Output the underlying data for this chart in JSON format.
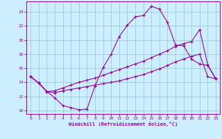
{
  "xlabel": "Windchill (Refroidissement éolien,°C)",
  "background_color": "#cceeff",
  "line_color": "#990099",
  "grid_color": "#99cccc",
  "xlim": [
    -0.5,
    23.5
  ],
  "ylim": [
    9.5,
    25.5
  ],
  "yticks": [
    10,
    12,
    14,
    16,
    18,
    20,
    22,
    24
  ],
  "xticks": [
    0,
    1,
    2,
    3,
    4,
    5,
    6,
    7,
    8,
    9,
    10,
    11,
    12,
    13,
    14,
    15,
    16,
    17,
    18,
    19,
    20,
    21,
    22,
    23
  ],
  "series1_x": [
    0,
    1,
    2,
    3,
    4,
    5,
    6,
    7,
    8,
    9,
    10,
    11,
    12,
    13,
    14,
    15,
    16,
    17,
    18,
    19,
    20,
    21,
    22,
    23
  ],
  "series1_y": [
    14.8,
    13.9,
    12.7,
    11.8,
    10.7,
    10.4,
    10.1,
    10.2,
    13.5,
    16.1,
    18.0,
    20.5,
    22.1,
    23.3,
    23.5,
    24.8,
    24.4,
    22.5,
    19.3,
    19.2,
    17.3,
    16.6,
    16.4,
    14.5
  ],
  "series2_x": [
    0,
    1,
    2,
    3,
    4,
    5,
    6,
    7,
    8,
    9,
    10,
    11,
    12,
    13,
    14,
    15,
    16,
    17,
    18,
    19,
    20,
    21,
    22,
    23
  ],
  "series2_y": [
    14.8,
    13.9,
    12.7,
    12.8,
    13.2,
    13.6,
    14.0,
    14.3,
    14.6,
    15.0,
    15.4,
    15.8,
    16.2,
    16.6,
    17.0,
    17.5,
    18.0,
    18.5,
    19.1,
    19.5,
    19.8,
    21.5,
    16.5,
    14.5
  ],
  "series3_x": [
    0,
    1,
    2,
    3,
    4,
    5,
    6,
    7,
    8,
    9,
    10,
    11,
    12,
    13,
    14,
    15,
    16,
    17,
    18,
    19,
    20,
    21,
    22,
    23
  ],
  "series3_y": [
    14.8,
    13.9,
    12.7,
    12.5,
    12.8,
    13.0,
    13.2,
    13.4,
    13.6,
    13.8,
    14.0,
    14.2,
    14.5,
    14.8,
    15.1,
    15.5,
    15.9,
    16.4,
    16.9,
    17.3,
    17.7,
    18.0,
    14.8,
    14.5
  ]
}
